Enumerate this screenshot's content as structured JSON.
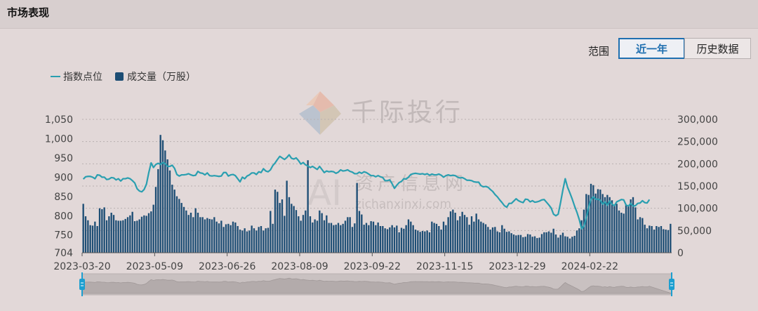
{
  "header": {
    "title": "市场表现"
  },
  "range": {
    "label": "范围",
    "buttons": [
      {
        "label": "近一年",
        "active": true
      },
      {
        "label": "历史数据",
        "active": false
      }
    ]
  },
  "watermark": {
    "brand": "千际投行",
    "ai_text": "AI",
    "cn_text": "资产信息网",
    "url_text": "zichanxinxi.com"
  },
  "colors": {
    "line": "#2a9fb0",
    "bar": "#1c4d74",
    "accent": "#1f6fb0"
  },
  "chart_data": {
    "type": "bar",
    "legend": [
      {
        "name": "指数点位",
        "marker": "line"
      },
      {
        "name": "成交量（万股）",
        "marker": "square"
      }
    ],
    "left_axis": {
      "ticks": [
        "1,050",
        "1,000",
        "950",
        "900",
        "850",
        "800",
        "750",
        "704"
      ],
      "min": 704,
      "max": 1050
    },
    "right_axis": {
      "ticks": [
        "300,000",
        "250,000",
        "200,000",
        "150,000",
        "100,000",
        "50,000",
        "0"
      ],
      "min": 0,
      "max": 300000
    },
    "x_tick_labels": [
      "2023-03-20",
      "2023-05-09",
      "2023-06-26",
      "2023-08-09",
      "2023-09-22",
      "2023-11-15",
      "2023-12-29",
      "2024-02-22"
    ],
    "series": [
      {
        "name": "指数点位",
        "type": "line",
        "values": [
          895,
          901,
          902,
          902,
          900,
          896,
          906,
          905,
          900,
          900,
          894,
          895,
          899,
          898,
          893,
          896,
          890,
          896,
          896,
          898,
          896,
          891,
          885,
          870,
          864,
          862,
          868,
          882,
          912,
          937,
          925,
          933,
          936,
          933,
          938,
          935,
          928,
          928,
          931,
          923,
          907,
          903,
          906,
          906,
          907,
          909,
          906,
          904,
          905,
          915,
          911,
          910,
          906,
          911,
          904,
          903,
          904,
          903,
          902,
          903,
          912,
          912,
          903,
          906,
          907,
          904,
          896,
          888,
          900,
          896,
          903,
          906,
          911,
          911,
          907,
          914,
          912,
          922,
          916,
          914,
          919,
          930,
          937,
          946,
          954,
          950,
          946,
          951,
          958,
          949,
          947,
          950,
          943,
          934,
          938,
          932,
          929,
          925,
          928,
          924,
          920,
          928,
          920,
          912,
          916,
          914,
          915,
          914,
          910,
          913,
          919,
          916,
          917,
          919,
          915,
          913,
          909,
          909,
          913,
          910,
          914,
          912,
          908,
          904,
          904,
          901,
          904,
          901,
          899,
          891,
          891,
          893,
          883,
          871,
          879,
          886,
          889,
          896,
          895,
          900,
          907,
          909,
          910,
          909,
          908,
          909,
          907,
          909,
          905,
          908,
          906,
          906,
          908,
          905,
          900,
          904,
          906,
          904,
          905,
          904,
          900,
          898,
          899,
          896,
          892,
          892,
          891,
          888,
          887,
          887,
          878,
          875,
          876,
          874,
          868,
          863,
          855,
          849,
          841,
          834,
          826,
          822,
          832,
          832,
          838,
          844,
          839,
          836,
          834,
          843,
          842,
          836,
          839,
          835,
          836,
          838,
          841,
          842,
          835,
          828,
          820,
          804,
          800,
          804,
          834,
          867,
          896,
          874,
          859,
          843,
          825,
          809,
          790,
          766,
          773,
          795,
          822,
          842,
          849,
          843,
          843,
          840,
          830,
          836,
          827,
          838,
          830,
          826,
          836,
          839,
          842,
          841,
          828,
          825,
          832,
          825,
          826,
          832,
          833,
          839,
          834,
          833,
          842
        ]
      },
      {
        "name": "成交量（万股）",
        "type": "bar",
        "values": [
          110000,
          82000,
          73000,
          62000,
          61000,
          70000,
          60000,
          100000,
          98000,
          102000,
          73000,
          82000,
          90000,
          85000,
          73000,
          72000,
          72000,
          73000,
          76000,
          80000,
          84000,
          92000,
          71000,
          72000,
          75000,
          81000,
          84000,
          83000,
          89000,
          93000,
          108000,
          148000,
          188000,
          265000,
          253000,
          230000,
          210000,
          185000,
          153000,
          142000,
          127000,
          121000,
          112000,
          103000,
          95000,
          85000,
          90000,
          80000,
          100000,
          90000,
          80000,
          80000,
          75000,
          78000,
          76000,
          75000,
          80000,
          70000,
          66000,
          72000,
          58000,
          64000,
          65000,
          62000,
          70000,
          68000,
          60000,
          52000,
          50000,
          55000,
          48000,
          50000,
          61000,
          55000,
          50000,
          58000,
          60000,
          50000,
          55000,
          56000,
          94000,
          65000,
          142000,
          137000,
          112000,
          120000,
          83000,
          162000,
          125000,
          110000,
          105000,
          96000,
          82000,
          72000,
          85000,
          95000,
          208000,
          82000,
          68000,
          75000,
          72000,
          95000,
          89000,
          73000,
          84000,
          67000,
          67000,
          62000,
          63000,
          67000,
          62000,
          65000,
          72000,
          80000,
          80000,
          58000,
          66000,
          157000,
          94000,
          86000,
          63000,
          67000,
          62000,
          71000,
          70000,
          62000,
          68000,
          60000,
          60000,
          55000,
          53000,
          57000,
          62000,
          57000,
          61000,
          46000,
          56000,
          54000,
          62000,
          75000,
          70000,
          62000,
          52000,
          50000,
          47000,
          49000,
          48000,
          50000,
          46000,
          70000,
          67000,
          65000,
          60000,
          52000,
          70000,
          62000,
          80000,
          93000,
          97000,
          90000,
          73000,
          82000,
          92000,
          85000,
          80000,
          63000,
          82000,
          70000,
          88000,
          75000,
          70000,
          67000,
          64000,
          58000,
          52000,
          57000,
          58000,
          48000,
          46000,
          62000,
          54000,
          47000,
          48000,
          44000,
          41000,
          39000,
          40000,
          40000,
          35000,
          36000,
          42000,
          41000,
          36000,
          37000,
          33000,
          34000,
          42000,
          46000,
          46000,
          48000,
          45000,
          54000,
          41000,
          34000,
          40000,
          45000,
          37000,
          36000,
          32000,
          36000,
          38000,
          50000,
          55000,
          73000,
          97000,
          132000,
          130000,
          155000,
          152000,
          133000,
          143000,
          142000,
          132000,
          125000,
          130000,
          125000,
          118000,
          106000,
          110000,
          95000,
          90000,
          88000,
          108000,
          105000,
          120000,
          125000,
          102000,
          75000,
          80000,
          78000,
          63000,
          55000,
          61000,
          60000,
          52000,
          60000,
          58000,
          60000,
          53000,
          52000,
          51000,
          65000
        ]
      }
    ]
  }
}
